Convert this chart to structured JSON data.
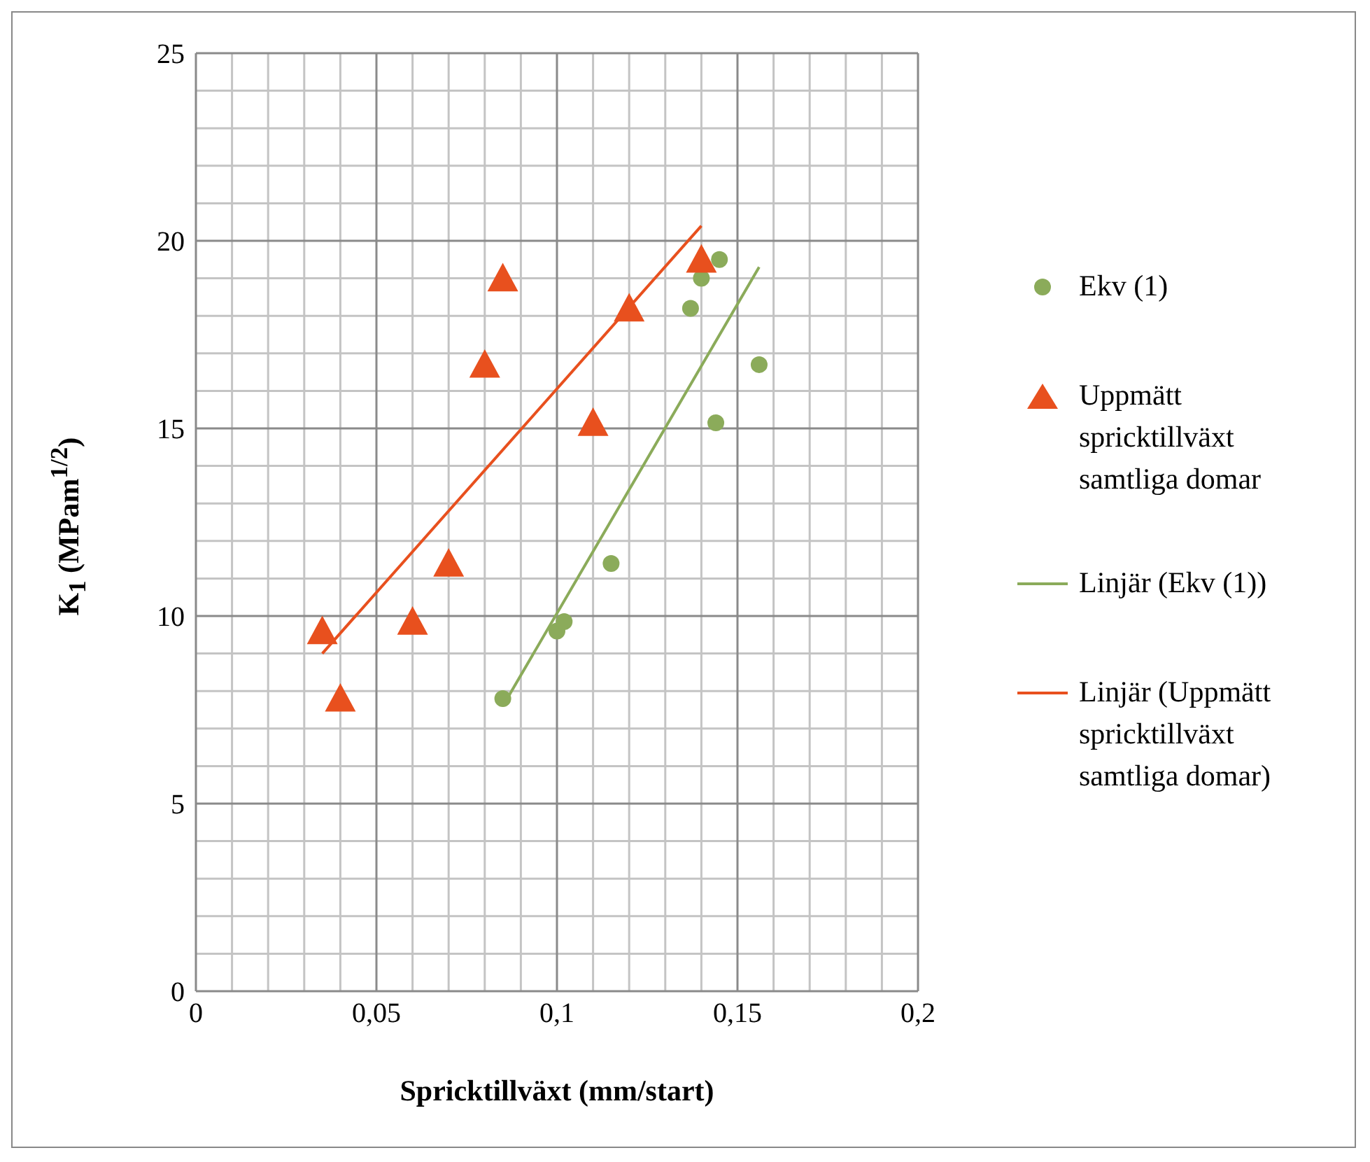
{
  "chart_data": {
    "type": "scatter",
    "xlabel": "Spricktillväxt (mm/start)",
    "ylabel": "K$_{1}$ (MPam$^{1/2}$)",
    "xlim": [
      0,
      0.2
    ],
    "xticks": [
      0,
      {
        "value": 0.05,
        "label": "0,05"
      },
      {
        "value": 0.1,
        "label": "0,1"
      },
      {
        "value": 0.15,
        "label": "0,15"
      },
      {
        "value": 0.2,
        "label": "0,2"
      }
    ],
    "ylim": [
      0,
      25
    ],
    "yticks": [
      0,
      5,
      10,
      15,
      20,
      25
    ],
    "grid": true,
    "legend": "right",
    "series": [
      {
        "name": "Ekv (1)",
        "marker": "circle",
        "color": "#8bab5a",
        "x": [
          0.085,
          0.1,
          0.102,
          0.115,
          0.137,
          0.14,
          0.144,
          0.145,
          0.156
        ],
        "values": [
          7.8,
          9.6,
          9.85,
          11.4,
          18.2,
          19.0,
          15.15,
          19.5,
          16.7
        ]
      },
      {
        "name": "Uppmätt spricktillväxt samtliga domar",
        "marker": "triangle",
        "color": "#e8501e",
        "x": [
          0.035,
          0.04,
          0.06,
          0.07,
          0.08,
          0.085,
          0.11,
          0.12,
          0.14
        ],
        "values": [
          9.6,
          7.8,
          9.85,
          11.4,
          16.7,
          19.0,
          15.15,
          18.2,
          19.5
        ]
      },
      {
        "name": "Linjär (Ekv (1))",
        "type": "line",
        "color": "#8bab5a",
        "x": [
          0.085,
          0.156
        ],
        "values": [
          7.6,
          19.3
        ]
      },
      {
        "name": "Linjär (Uppmätt spricktillväxt samtliga domar)",
        "type": "line",
        "color": "#e8501e",
        "x": [
          0.035,
          0.14
        ],
        "values": [
          9.0,
          20.4
        ]
      }
    ]
  }
}
